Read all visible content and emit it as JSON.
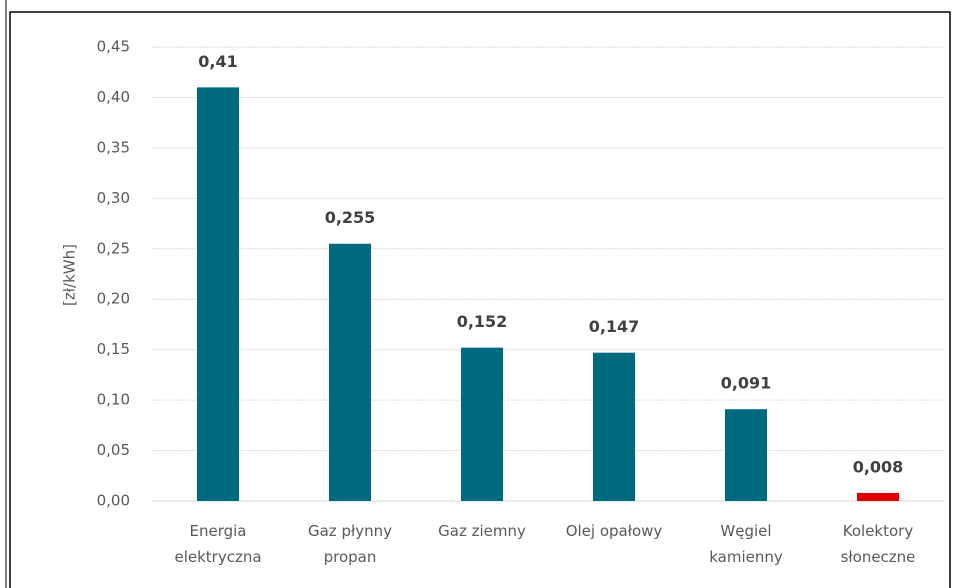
{
  "chart_data": {
    "type": "bar",
    "y_label": "[zł/kWh]",
    "categories": [
      "Energia\nelektryczna",
      "Gaz płynny\npropan",
      "Gaz ziemny",
      "Olej opałowy",
      "Węgiel\nkamienny",
      "Kolektory\nsłoneczne"
    ],
    "values": [
      0.41,
      0.255,
      0.152,
      0.147,
      0.091,
      0.008
    ],
    "value_labels": [
      "0,41",
      "0,255",
      "0,152",
      "0,147",
      "0,091",
      "0,008"
    ],
    "colors": [
      "#006b80",
      "#006b80",
      "#006b80",
      "#006b80",
      "#006b80",
      "#e00000"
    ],
    "ylim": [
      0,
      0.45
    ],
    "yticks": [
      {
        "value": 0,
        "label": "0,00"
      },
      {
        "value": 0.05,
        "label": "0,05"
      },
      {
        "value": 0.1,
        "label": "0,10"
      },
      {
        "value": 0.15,
        "label": "0,15"
      },
      {
        "value": 0.2,
        "label": "0,20"
      },
      {
        "value": 0.25,
        "label": "0,25"
      },
      {
        "value": 0.3,
        "label": "0,30"
      },
      {
        "value": 0.35,
        "label": "0,35"
      },
      {
        "value": 0.4,
        "label": "0,40"
      },
      {
        "value": 0.45,
        "label": "0,45"
      }
    ],
    "grid": true
  }
}
